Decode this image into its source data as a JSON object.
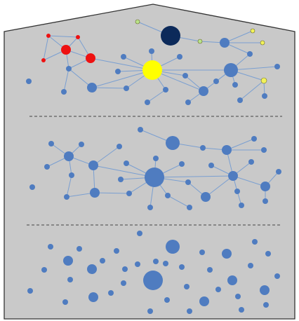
{
  "colors": {
    "background": "#c9c9c9",
    "outline": "#333333",
    "node_default": "#4f7cc0",
    "edge": "#7a9fd1",
    "divider": "#444444",
    "highlight_hub": "#ffff00",
    "infected_red": "#ee1111",
    "dark_node": "#0c2a5a",
    "green_node": "#b9e38a",
    "yellow_small": "#f2f25a"
  },
  "panels": [
    {
      "id": "top",
      "nodes": [
        {
          "id": "d1",
          "kind": "dark",
          "size": "xl"
        },
        {
          "id": "g1",
          "kind": "green",
          "size": "xs"
        },
        {
          "id": "g2",
          "kind": "green",
          "size": "xs"
        },
        {
          "id": "y_hub",
          "kind": "yellow",
          "size": "xl"
        },
        {
          "id": "y1",
          "kind": "yellow_small",
          "size": "xs"
        },
        {
          "id": "y2",
          "kind": "yellow_small",
          "size": "xs"
        },
        {
          "id": "y3",
          "kind": "yellow_small",
          "size": "sm"
        },
        {
          "id": "r1",
          "kind": "red",
          "size": "xs"
        },
        {
          "id": "r2",
          "kind": "red",
          "size": "xs"
        },
        {
          "id": "r3",
          "kind": "red",
          "size": "md"
        },
        {
          "id": "r4",
          "kind": "red",
          "size": "md"
        },
        {
          "id": "r5",
          "kind": "red",
          "size": "xs"
        }
      ]
    },
    {
      "id": "middle"
    },
    {
      "id": "bottom"
    }
  ]
}
